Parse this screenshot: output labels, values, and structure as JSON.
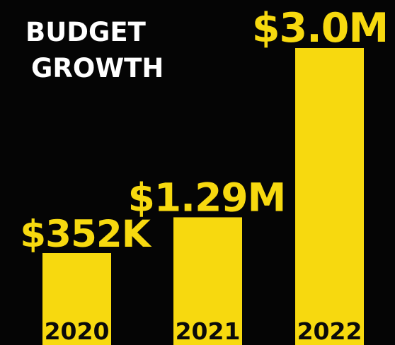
{
  "chart_data": {
    "type": "bar",
    "title_lines": [
      "BUDGET",
      "GROWTH"
    ],
    "categories": [
      "2020",
      "2021",
      "2022"
    ],
    "values": [
      352000,
      1290000,
      3000000
    ],
    "value_labels": [
      "$352K",
      "$1.29M",
      "$3.0M"
    ],
    "xlabel": "",
    "ylabel": "",
    "grid": false,
    "legend": "none",
    "bar_color": "#f7d90f",
    "background_color": "#050505",
    "title_color": "#ffffff",
    "tick_label_color": "#0a0a0a"
  }
}
